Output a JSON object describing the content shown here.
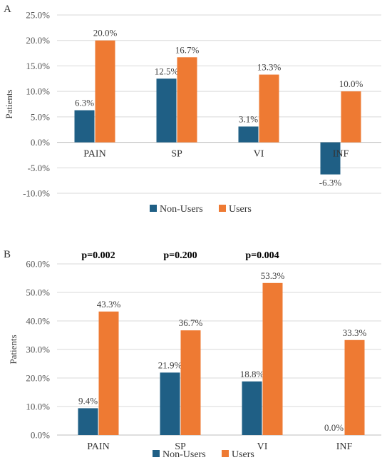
{
  "colors": {
    "non_users": "#1f5f85",
    "users": "#ee7a33",
    "grid": "#d9d9d9",
    "axis": "#bfbfbf"
  },
  "chart_data": [
    {
      "type": "bar",
      "panel_label": "A",
      "categories": [
        "PAIN",
        "SP",
        "VI",
        "INF"
      ],
      "series": [
        {
          "name": "Non-Users",
          "values": [
            6.3,
            12.5,
            3.1,
            -6.3
          ]
        },
        {
          "name": "Users",
          "values": [
            20.0,
            16.7,
            13.3,
            10.0
          ]
        }
      ],
      "ylabel": "Patients",
      "ylim": [
        -10,
        25
      ],
      "yticks": [
        -10,
        -5,
        0,
        5,
        10,
        15,
        20,
        25
      ],
      "value_format": "percent_1dp",
      "grid": true,
      "legend": "bottom"
    },
    {
      "type": "bar",
      "panel_label": "B",
      "categories": [
        "PAIN",
        "SP",
        "VI",
        "INF"
      ],
      "series": [
        {
          "name": "Non-Users",
          "values": [
            9.4,
            21.9,
            18.8,
            0.0
          ]
        },
        {
          "name": "Users",
          "values": [
            43.3,
            36.7,
            53.3,
            33.3
          ]
        }
      ],
      "annotations": [
        "p=0.002",
        "p=0.200",
        "p=0.004",
        ""
      ],
      "ylabel": "Patients",
      "ylim": [
        0,
        60
      ],
      "yticks": [
        0,
        10,
        20,
        30,
        40,
        50,
        60
      ],
      "value_format": "percent_1dp",
      "grid": true,
      "legend": "bottom"
    }
  ]
}
